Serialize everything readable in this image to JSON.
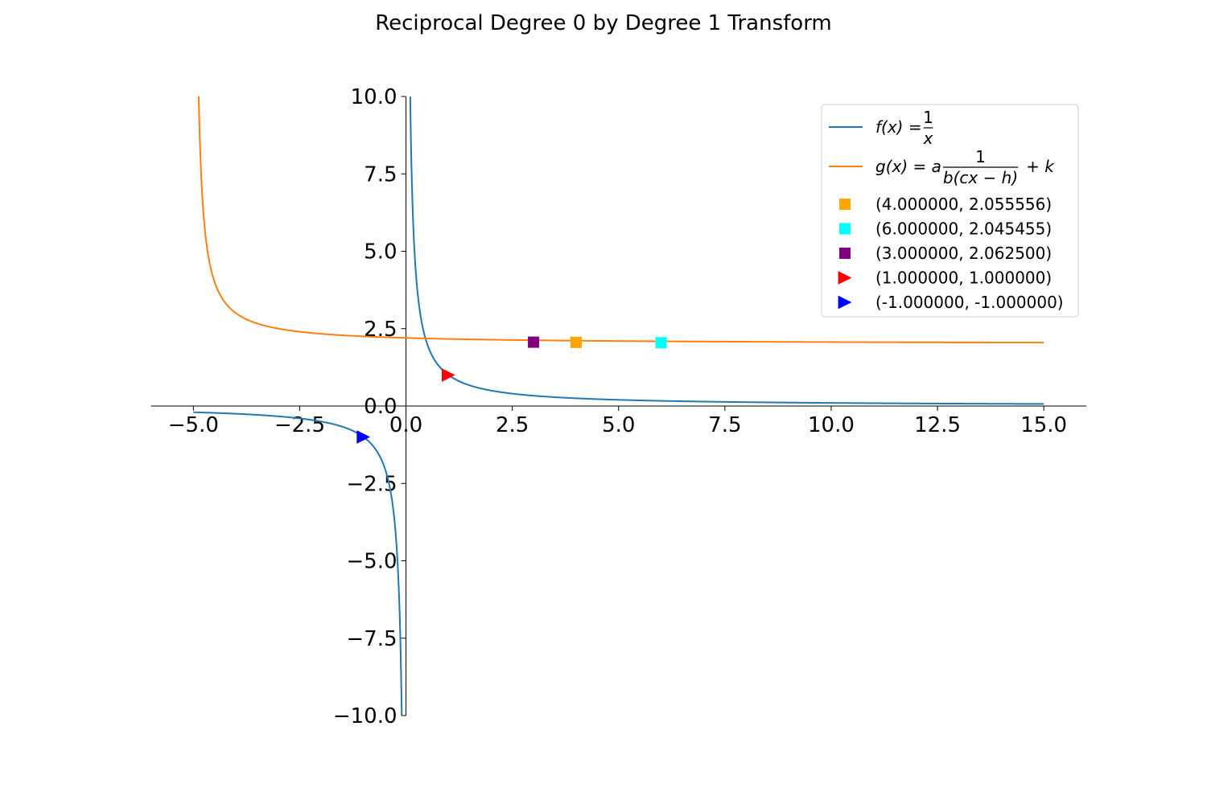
{
  "chart_data": {
    "type": "line",
    "title": "Reciprocal Degree 0 by Degree 1 Transform",
    "xlim": [
      -6,
      16
    ],
    "ylim": [
      -10,
      10
    ],
    "x_ticks": [
      -5.0,
      -2.5,
      0.0,
      2.5,
      5.0,
      7.5,
      10.0,
      12.5,
      15.0
    ],
    "x_tick_labels": [
      "−5.0",
      "−2.5",
      "0.0",
      "2.5",
      "5.0",
      "7.5",
      "10.0",
      "12.5",
      "15.0"
    ],
    "y_ticks": [
      10.0,
      7.5,
      5.0,
      2.5,
      0.0,
      -2.5,
      -5.0,
      -7.5,
      -10.0
    ],
    "y_tick_labels": [
      "10.0",
      "7.5",
      "5.0",
      "2.5",
      "0.0",
      "−2.5",
      "−5.0",
      "−7.5",
      "−10.0"
    ],
    "grid": false,
    "legend_position": "top-right",
    "series": [
      {
        "name": "f(x) = 1/x",
        "legend_parts": {
          "lhs": "f(x) = ",
          "numerator": "1",
          "denominator": "x"
        },
        "formula": "1/x",
        "domain": [
          -5,
          15
        ],
        "color": "#1f77b4"
      },
      {
        "name": "g(x) = a 1/(b(cx − h)) + k",
        "legend_parts": {
          "lhs": "g(x) = a",
          "numerator": "1",
          "denominator": "b(cx − h)",
          "tail": "+ k"
        },
        "formula": "2 + 1/(x + 5)",
        "domain": [
          -4.9,
          15
        ],
        "color": "#ff7f0e"
      }
    ],
    "points": [
      {
        "label": "(4.000000, 2.055556)",
        "x": 4.0,
        "y": 2.055556,
        "marker": "square",
        "color": "#ffa500"
      },
      {
        "label": "(6.000000, 2.045455)",
        "x": 6.0,
        "y": 2.045455,
        "marker": "square",
        "color": "#00ffff"
      },
      {
        "label": "(3.000000, 2.062500)",
        "x": 3.0,
        "y": 2.0625,
        "marker": "square",
        "color": "#800080"
      },
      {
        "label": "(1.000000, 1.000000)",
        "x": 1.0,
        "y": 1.0,
        "marker": "triangle-right",
        "color": "#ff0000"
      },
      {
        "label": "(-1.000000, -1.000000)",
        "x": -1.0,
        "y": -1.0,
        "marker": "triangle-right",
        "color": "#0000ff"
      }
    ]
  }
}
